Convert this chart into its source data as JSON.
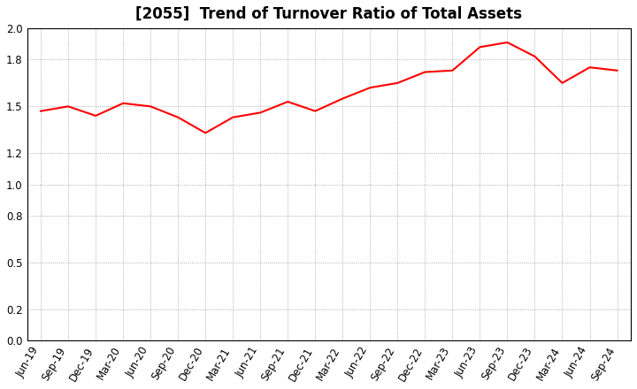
{
  "title": "[2055]  Trend of Turnover Ratio of Total Assets",
  "x_labels": [
    "Jun-19",
    "Sep-19",
    "Dec-19",
    "Mar-20",
    "Jun-20",
    "Sep-20",
    "Dec-20",
    "Mar-21",
    "Jun-21",
    "Sep-21",
    "Dec-21",
    "Mar-22",
    "Jun-22",
    "Sep-22",
    "Dec-22",
    "Mar-23",
    "Jun-23",
    "Sep-23",
    "Dec-23",
    "Mar-24",
    "Jun-24",
    "Sep-24"
  ],
  "y_values": [
    1.47,
    1.5,
    1.44,
    1.52,
    1.5,
    1.43,
    1.33,
    1.43,
    1.46,
    1.53,
    1.47,
    1.55,
    1.62,
    1.65,
    1.72,
    1.73,
    1.88,
    1.91,
    1.82,
    1.65,
    1.75,
    1.73
  ],
  "line_color": "#ff0000",
  "line_width": 1.5,
  "ylim": [
    0.0,
    2.0
  ],
  "yticks": [
    0.0,
    0.2,
    0.5,
    0.8,
    1.0,
    1.2,
    1.5,
    1.8,
    2.0
  ],
  "background_color": "#ffffff",
  "grid_color": "#999999",
  "title_fontsize": 12,
  "tick_fontsize": 8.5
}
